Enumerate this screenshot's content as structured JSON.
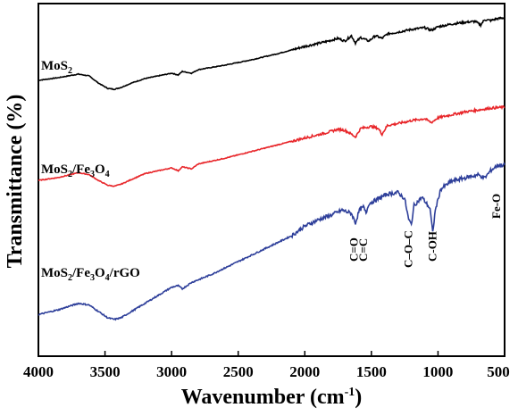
{
  "chart_data": {
    "type": "line",
    "title": "",
    "xlabel": "Wavenumber (cm",
    "xlabel_superscript": "-1",
    "xlabel_close": ")",
    "ylabel": "Transmittance (%)",
    "x_reversed": true,
    "xlim": [
      4000,
      500
    ],
    "x_ticks": [
      "4000",
      "3500",
      "3000",
      "2500",
      "2000",
      "1500",
      "1000",
      "500"
    ],
    "y_ticks_shown": false,
    "grid": false,
    "series": [
      {
        "name_parts": [
          [
            "MoS",
            "n"
          ],
          [
            "2",
            "sub"
          ]
        ],
        "color": "#000000",
        "points": [
          [
            4000,
            0.3
          ],
          [
            3850,
            0.33
          ],
          [
            3700,
            0.37
          ],
          [
            3620,
            0.35
          ],
          [
            3550,
            0.27
          ],
          [
            3480,
            0.21
          ],
          [
            3430,
            0.2
          ],
          [
            3380,
            0.22
          ],
          [
            3300,
            0.27
          ],
          [
            3200,
            0.32
          ],
          [
            3100,
            0.35
          ],
          [
            3000,
            0.38
          ],
          [
            2950,
            0.36
          ],
          [
            2920,
            0.4
          ],
          [
            2850,
            0.38
          ],
          [
            2800,
            0.42
          ],
          [
            2600,
            0.47
          ],
          [
            2400,
            0.53
          ],
          [
            2200,
            0.6
          ],
          [
            2000,
            0.68
          ],
          [
            1850,
            0.73
          ],
          [
            1750,
            0.77
          ],
          [
            1700,
            0.74
          ],
          [
            1650,
            0.8
          ],
          [
            1620,
            0.72
          ],
          [
            1580,
            0.78
          ],
          [
            1520,
            0.74
          ],
          [
            1470,
            0.8
          ],
          [
            1420,
            0.77
          ],
          [
            1380,
            0.82
          ],
          [
            1300,
            0.84
          ],
          [
            1200,
            0.87
          ],
          [
            1100,
            0.89
          ],
          [
            1050,
            0.86
          ],
          [
            1000,
            0.9
          ],
          [
            900,
            0.93
          ],
          [
            800,
            0.95
          ],
          [
            720,
            0.96
          ],
          [
            680,
            0.92
          ],
          [
            650,
            0.98
          ],
          [
            600,
            0.97
          ],
          [
            560,
            0.99
          ],
          [
            500,
            1.0
          ]
        ]
      },
      {
        "name_parts": [
          [
            "MoS",
            "n"
          ],
          [
            "2",
            "sub"
          ],
          [
            "/Fe",
            "n"
          ],
          [
            "3",
            "sub"
          ],
          [
            "O",
            "n"
          ],
          [
            "4",
            "sub"
          ]
        ],
        "color": "#e8262a",
        "points": [
          [
            4000,
            0.24
          ],
          [
            3850,
            0.27
          ],
          [
            3700,
            0.32
          ],
          [
            3620,
            0.3
          ],
          [
            3550,
            0.24
          ],
          [
            3480,
            0.19
          ],
          [
            3430,
            0.18
          ],
          [
            3380,
            0.2
          ],
          [
            3300,
            0.25
          ],
          [
            3200,
            0.31
          ],
          [
            3100,
            0.34
          ],
          [
            3000,
            0.37
          ],
          [
            2950,
            0.34
          ],
          [
            2920,
            0.38
          ],
          [
            2850,
            0.36
          ],
          [
            2800,
            0.41
          ],
          [
            2600,
            0.47
          ],
          [
            2400,
            0.54
          ],
          [
            2200,
            0.61
          ],
          [
            2000,
            0.68
          ],
          [
            1850,
            0.73
          ],
          [
            1750,
            0.77
          ],
          [
            1700,
            0.76
          ],
          [
            1650,
            0.72
          ],
          [
            1620,
            0.69
          ],
          [
            1580,
            0.78
          ],
          [
            1500,
            0.8
          ],
          [
            1450,
            0.78
          ],
          [
            1420,
            0.72
          ],
          [
            1380,
            0.81
          ],
          [
            1300,
            0.83
          ],
          [
            1200,
            0.86
          ],
          [
            1100,
            0.88
          ],
          [
            1050,
            0.84
          ],
          [
            1000,
            0.89
          ],
          [
            900,
            0.92
          ],
          [
            800,
            0.95
          ],
          [
            700,
            0.97
          ],
          [
            600,
            0.99
          ],
          [
            500,
            1.0
          ]
        ]
      },
      {
        "name_parts": [
          [
            "MoS",
            "n"
          ],
          [
            "2",
            "sub"
          ],
          [
            "/Fe",
            "n"
          ],
          [
            "3",
            "sub"
          ],
          [
            "O",
            "n"
          ],
          [
            "4",
            "sub"
          ],
          [
            "/rGO",
            "n"
          ]
        ],
        "color": "#2e3f9a",
        "points": [
          [
            4000,
            0.07
          ],
          [
            3850,
            0.1
          ],
          [
            3700,
            0.14
          ],
          [
            3620,
            0.13
          ],
          [
            3550,
            0.09
          ],
          [
            3480,
            0.05
          ],
          [
            3430,
            0.04
          ],
          [
            3380,
            0.05
          ],
          [
            3300,
            0.09
          ],
          [
            3200,
            0.14
          ],
          [
            3100,
            0.19
          ],
          [
            3000,
            0.24
          ],
          [
            2950,
            0.25
          ],
          [
            2920,
            0.23
          ],
          [
            2850,
            0.27
          ],
          [
            2700,
            0.32
          ],
          [
            2500,
            0.4
          ],
          [
            2300,
            0.48
          ],
          [
            2100,
            0.56
          ],
          [
            2000,
            0.62
          ],
          [
            1900,
            0.66
          ],
          [
            1800,
            0.69
          ],
          [
            1720,
            0.72
          ],
          [
            1650,
            0.7
          ],
          [
            1620,
            0.64
          ],
          [
            1590,
            0.72
          ],
          [
            1560,
            0.74
          ],
          [
            1540,
            0.7
          ],
          [
            1520,
            0.76
          ],
          [
            1450,
            0.79
          ],
          [
            1380,
            0.82
          ],
          [
            1300,
            0.83
          ],
          [
            1250,
            0.79
          ],
          [
            1220,
            0.66
          ],
          [
            1200,
            0.63
          ],
          [
            1180,
            0.75
          ],
          [
            1120,
            0.8
          ],
          [
            1060,
            0.73
          ],
          [
            1040,
            0.58
          ],
          [
            1020,
            0.72
          ],
          [
            980,
            0.85
          ],
          [
            900,
            0.9
          ],
          [
            800,
            0.92
          ],
          [
            700,
            0.94
          ],
          [
            650,
            0.92
          ],
          [
            600,
            0.97
          ],
          [
            550,
            1.0
          ],
          [
            500,
            1.0
          ]
        ]
      }
    ],
    "annotations": [
      {
        "text": "C=O",
        "x": 1630
      },
      {
        "text": "C=C",
        "x": 1560
      },
      {
        "text": "C–O–C",
        "x": 1220
      },
      {
        "text": "C-OH",
        "x": 1040
      },
      {
        "text": "Fe-O",
        "x": 560
      }
    ]
  }
}
